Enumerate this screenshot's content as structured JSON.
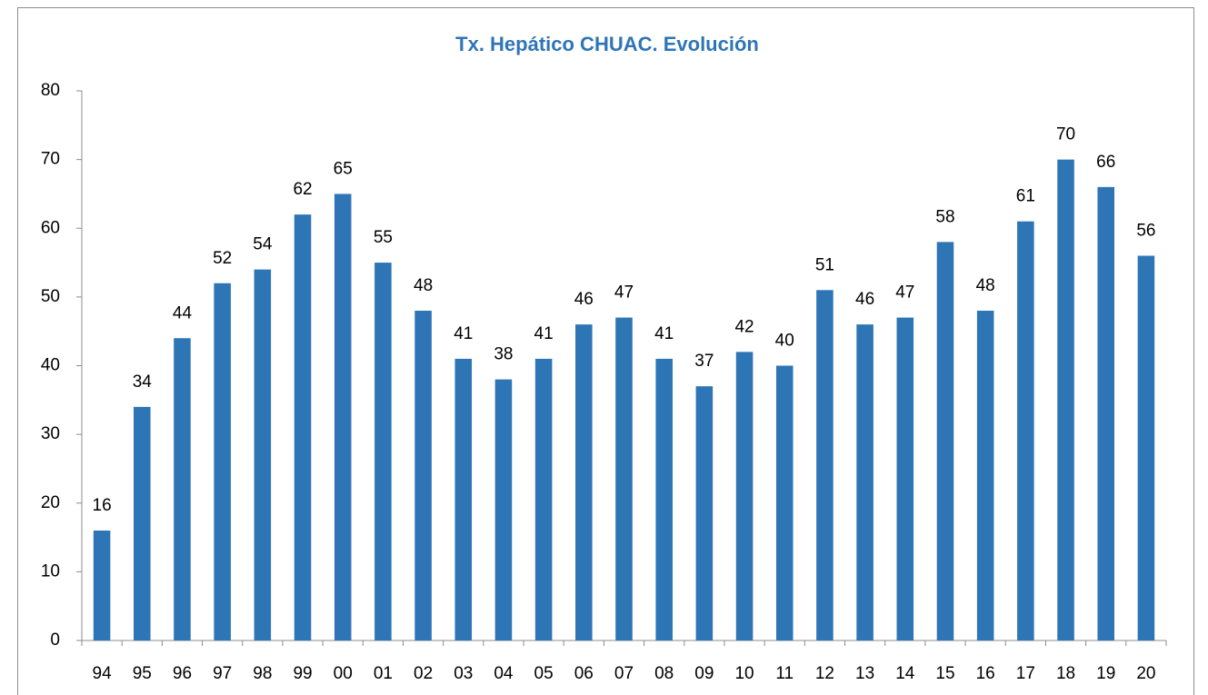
{
  "chart_data": {
    "type": "bar",
    "title": "Tx. Hepático CHUAC. Evolución",
    "categories": [
      "94",
      "95",
      "96",
      "97",
      "98",
      "99",
      "00",
      "01",
      "02",
      "03",
      "04",
      "05",
      "06",
      "07",
      "08",
      "09",
      "10",
      "11",
      "12",
      "13",
      "14",
      "15",
      "16",
      "17",
      "18",
      "19",
      "20"
    ],
    "values": [
      16,
      34,
      44,
      52,
      54,
      62,
      65,
      55,
      48,
      41,
      38,
      41,
      46,
      47,
      41,
      37,
      42,
      40,
      51,
      46,
      47,
      58,
      48,
      61,
      70,
      66,
      56
    ],
    "color": "#2e75b6",
    "ylim": [
      0,
      80
    ],
    "yticks": [
      0,
      10,
      20,
      30,
      40,
      50,
      60,
      70,
      80
    ],
    "grid": false
  }
}
